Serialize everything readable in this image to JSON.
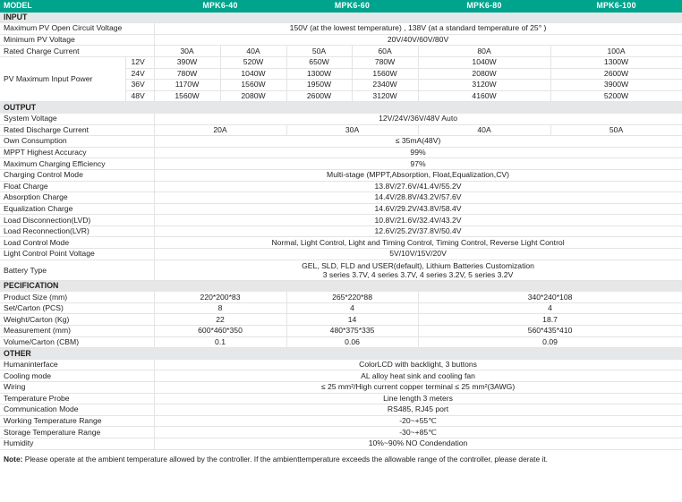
{
  "header": {
    "label": "MODEL",
    "models": [
      "MPK6-40",
      "MPK6-60",
      "MPK6-80",
      "MPK6-100"
    ]
  },
  "colors": {
    "header_bg": "#00a48c",
    "section_bg": "#e6e7e8"
  },
  "sections": [
    {
      "title": "INPUT",
      "rows": [
        {
          "label": "Maximum PV Open Circuit Voltage",
          "values": [
            "150V (at the lowest temperature) , 138V (at a standard temperature of 25° )"
          ]
        },
        {
          "label": "Minimum PV Voltage",
          "values": [
            "20V/40V/60V/80V"
          ]
        },
        {
          "label": "Rated Charge Current",
          "values": [
            "30A",
            "40A",
            "50A",
            "60A",
            "80A",
            "100A"
          ]
        }
      ],
      "pv_power": {
        "label": "PV Maximum Input Power",
        "rows": [
          {
            "voltage": "12V",
            "values": [
              "390W",
              "520W",
              "650W",
              "780W",
              "1040W",
              "1300W"
            ]
          },
          {
            "voltage": "24V",
            "values": [
              "780W",
              "1040W",
              "1300W",
              "1560W",
              "2080W",
              "2600W"
            ]
          },
          {
            "voltage": "36V",
            "values": [
              "1170W",
              "1560W",
              "1950W",
              "2340W",
              "3120W",
              "3900W"
            ]
          },
          {
            "voltage": "48V",
            "values": [
              "1560W",
              "2080W",
              "2600W",
              "3120W",
              "4160W",
              "5200W"
            ]
          }
        ]
      }
    },
    {
      "title": "OUTPUT",
      "rows": [
        {
          "label": "System Voltage",
          "values": [
            "12V/24V/36V/48V Auto"
          ]
        },
        {
          "label": "Rated Discharge Current",
          "values": [
            "20A",
            "30A",
            "40A",
            "50A"
          ]
        },
        {
          "label": "Own Consumption",
          "values": [
            "≤ 35mA(48V)"
          ]
        },
        {
          "label": "MPPT Highest Accuracy",
          "values": [
            "99%"
          ]
        },
        {
          "label": "Maximum Charging Efficiency",
          "values": [
            "97%"
          ]
        },
        {
          "label": "Charging Control Mode",
          "values": [
            "Multi-stage (MPPT,Absorption, Float,Equalization,CV)"
          ]
        },
        {
          "label": "Float Charge",
          "values": [
            "13.8V/27.6V/41.4V/55.2V"
          ]
        },
        {
          "label": "Absorption Charge",
          "values": [
            "14.4V/28.8V/43.2V/57.6V"
          ]
        },
        {
          "label": "Equalization Charge",
          "values": [
            "14.6V/29.2V/43.8V/58.4V"
          ]
        },
        {
          "label": "Load Disconnection(LVD)",
          "values": [
            "10.8V/21.6V/32.4V/43.2V"
          ]
        },
        {
          "label": "Load Reconnection(LVR)",
          "values": [
            "12.6V/25.2V/37.8V/50.4V"
          ]
        },
        {
          "label": "Load Control Mode",
          "values": [
            "Normal, Light Control, Light and Timing Control, Timing Control, Reverse Light Control"
          ]
        },
        {
          "label": "Light Control Point Voltage",
          "values": [
            "5V/10V/15V/20V"
          ]
        },
        {
          "label": "Battery Type",
          "lines": [
            "GEL, SLD, FLD and USER(default), Lithium Batteries Customization",
            "3 series 3.7V, 4 series 3.7V, 4 series 3.2V, 5 series 3.2V"
          ]
        }
      ]
    },
    {
      "title": "PECIFICATION",
      "rows": [
        {
          "label": "Product Size (mm)",
          "values": [
            "220*200*83",
            "265*220*88",
            "340*240*108"
          ]
        },
        {
          "label": "Set/Carton (PCS)",
          "values": [
            "8",
            "4",
            "4"
          ]
        },
        {
          "label": "Weight/Carton (Kg)",
          "values": [
            "22",
            "14",
            "18.7"
          ]
        },
        {
          "label": "Measurement (mm)",
          "values": [
            "600*460*350",
            "480*375*335",
            "560*435*410"
          ]
        },
        {
          "label": "Volume/Carton (CBM)",
          "values": [
            "0.1",
            "0.06",
            "0.09"
          ]
        }
      ]
    },
    {
      "title": "OTHER",
      "rows": [
        {
          "label": "Humaninterface",
          "values": [
            "ColorLCD with backlight, 3 buttons"
          ]
        },
        {
          "label": "Cooling mode",
          "values": [
            "AL alloy heat sink and cooling fan"
          ]
        },
        {
          "label": "Wiring",
          "values": [
            "≤ 25 mm²/High current copper terminal ≤ 25 mm²(3AWG)"
          ]
        },
        {
          "label": "Temperature Probe",
          "values": [
            "Line length 3 meters"
          ]
        },
        {
          "label": "Communication Mode",
          "values": [
            "RS485, RJ45 port"
          ]
        },
        {
          "label": "Working Temperature Range",
          "values": [
            "-20~+55℃"
          ]
        },
        {
          "label": "Storage Temperature Range",
          "values": [
            "-30~+85℃"
          ]
        },
        {
          "label": "Humidity",
          "values": [
            "10%~90% NO Condendation"
          ]
        }
      ]
    }
  ],
  "note": {
    "label": "Note:",
    "text": " Please operate at the ambient temperature allowed by the controller. If the ambienttemperature exceeds the allowable range of the controller, please derate it."
  }
}
